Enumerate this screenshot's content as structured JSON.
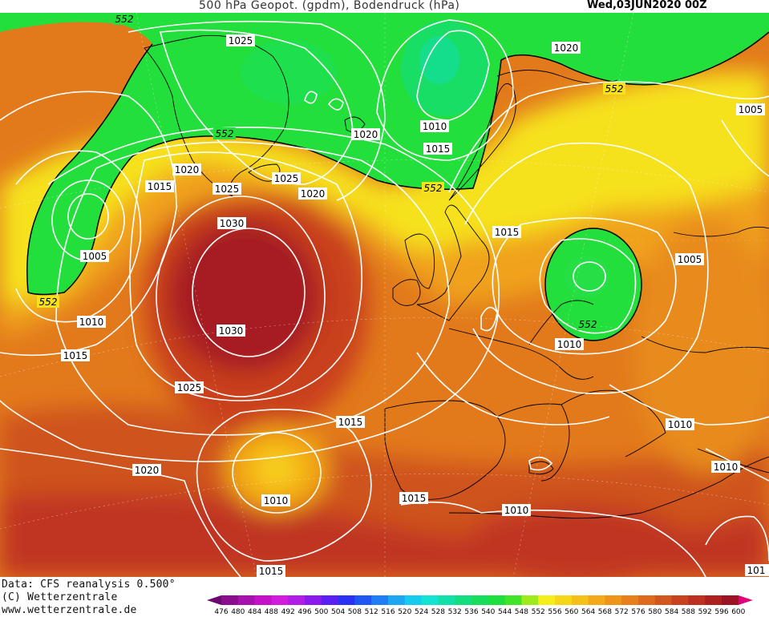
{
  "header": {
    "title": "500 hPa Geopot. (gpdm), Bodendruck (hPa)",
    "date": "Wed,03JUN2020 00Z"
  },
  "footer": {
    "data_source": "Data: CFS reanalysis 0.500°",
    "copyright": "(C) Wetterzentrale",
    "website": "www.wetterzentrale.de"
  },
  "colors": {
    "trough_green": "#21e03a",
    "trough_deep": "#12dd86",
    "yellow": "#f7ee1a",
    "orange": "#f3a919",
    "dark_orange": "#e27a1c",
    "red": "#c9401f",
    "dark_red": "#a61c22",
    "isobar": "#ffffff",
    "coastline": "#000000"
  },
  "map": {
    "geopotential_labels": [
      {
        "value": "552"
      },
      {
        "value": "552"
      },
      {
        "value": "552"
      },
      {
        "value": "552"
      },
      {
        "value": "552"
      },
      {
        "value": "552"
      }
    ],
    "pressure_labels": [
      {
        "value": "1025"
      },
      {
        "value": "1020"
      },
      {
        "value": "1020"
      },
      {
        "value": "1015"
      },
      {
        "value": "1010"
      },
      {
        "value": "1005"
      },
      {
        "value": "1020"
      },
      {
        "value": "1015"
      },
      {
        "value": "1025"
      },
      {
        "value": "1025"
      },
      {
        "value": "1020"
      },
      {
        "value": "1030"
      },
      {
        "value": "1005"
      },
      {
        "value": "1010"
      },
      {
        "value": "1015"
      },
      {
        "value": "1030"
      },
      {
        "value": "1025"
      },
      {
        "value": "1015"
      },
      {
        "value": "1015"
      },
      {
        "value": "1005"
      },
      {
        "value": "1010"
      },
      {
        "value": "1020"
      },
      {
        "value": "1010"
      },
      {
        "value": "1015"
      },
      {
        "value": "1010"
      },
      {
        "value": "1010"
      },
      {
        "value": "1010"
      },
      {
        "value": "1015"
      },
      {
        "value": "101"
      }
    ]
  },
  "colorbar": {
    "ticks": [
      "476",
      "480",
      "484",
      "488",
      "492",
      "496",
      "500",
      "504",
      "508",
      "512",
      "516",
      "520",
      "524",
      "528",
      "532",
      "536",
      "540",
      "544",
      "548",
      "552",
      "556",
      "560",
      "564",
      "568",
      "572",
      "576",
      "580",
      "584",
      "588",
      "592",
      "596",
      "600"
    ],
    "colors": [
      "#6a0a6e",
      "#8a0d8e",
      "#a810ae",
      "#c411c8",
      "#d21bdc",
      "#b21de6",
      "#8a19ee",
      "#5a1ff2",
      "#2b31f2",
      "#1f57f3",
      "#1f7ef3",
      "#1fa6f3",
      "#17cbf0",
      "#13e3d3",
      "#13dfa8",
      "#14dd80",
      "#18dd5c",
      "#1ddf3e",
      "#40e52a",
      "#9eea1c",
      "#f5ee1a",
      "#f6d718",
      "#f5c018",
      "#f3a919",
      "#ee941b",
      "#e67f1c",
      "#dd6a1d",
      "#d3561e",
      "#c9421f",
      "#bd3020",
      "#ae2020",
      "#9a1424",
      "#e0007a"
    ]
  }
}
